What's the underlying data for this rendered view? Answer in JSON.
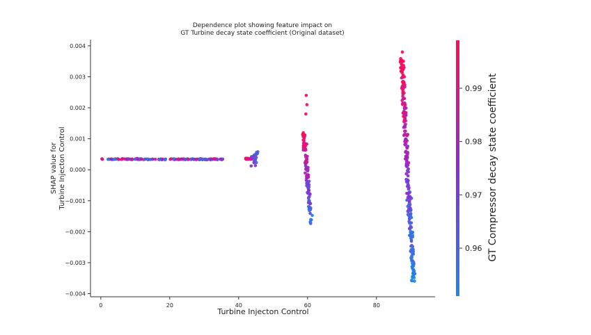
{
  "chart_data": {
    "type": "scatter",
    "title_lines": [
      "Dependence plot showing feature impact on",
      "GT Turbine decay state coefficient (Original dataset)"
    ],
    "xlabel": "Turbine Injecton Control",
    "ylabel_lines": [
      "SHAP value for",
      "Turbine Injecton Control"
    ],
    "colorbar_label": "GT Compressor decay state coefficient",
    "xlim": [
      -3,
      97
    ],
    "ylim": [
      -0.0041,
      0.0042
    ],
    "x_ticks": [
      0,
      20,
      40,
      60,
      80
    ],
    "y_ticks": [
      0.004,
      0.003,
      0.002,
      0.001,
      0.0,
      -0.001,
      -0.002,
      -0.003,
      -0.004
    ],
    "y_tick_labels": [
      "0.004",
      "0.003",
      "0.002",
      "0.001",
      "0.000",
      "−0.001",
      "−0.002",
      "−0.003",
      "−0.004"
    ],
    "color_range": [
      0.951,
      0.999
    ],
    "colorbar_ticks": [
      0.99,
      0.98,
      0.97,
      0.96
    ],
    "colorbar_tick_labels": [
      "0.99",
      "0.98",
      "0.97",
      "0.96"
    ],
    "colormap": [
      "#1E88E5",
      "#8E2BD1",
      "#FF0D57"
    ],
    "clusters": [
      {
        "x_range": [
          0,
          36
        ],
        "y_center": 0.00034,
        "y_spread": 3e-05,
        "count": 140,
        "shape": "flat"
      },
      {
        "x_range": [
          42,
          46
        ],
        "y_center": 0.00035,
        "y_spread": 0.00025,
        "count": 45,
        "shape": "cross"
      },
      {
        "x_range": [
          58,
          62
        ],
        "y_start": 0.0012,
        "y_end": -0.0018,
        "count": 110,
        "shape": "band"
      },
      {
        "x_range": [
          86,
          92
        ],
        "y_start": 0.0036,
        "y_end": -0.0036,
        "count": 260,
        "shape": "band"
      }
    ]
  }
}
